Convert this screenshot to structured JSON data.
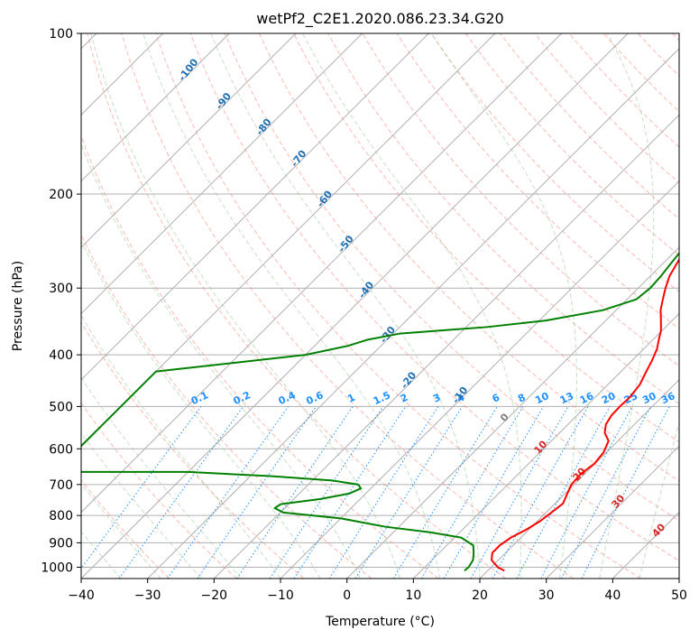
{
  "chart_data": {
    "type": "line",
    "title": "wetPf2_C2E1.2020.086.23.34.G20",
    "xlabel": "Temperature (°C)",
    "ylabel": "Pressure (hPa)",
    "xlim": [
      -40,
      50
    ],
    "ylim": [
      1050,
      100
    ],
    "yscale": "log",
    "x_ticks": [
      -40,
      -30,
      -20,
      -10,
      0,
      10,
      20,
      30,
      40,
      50
    ],
    "x_tick_labels": [
      "−40",
      "−30",
      "−20",
      "−10",
      "0",
      "10",
      "20",
      "30",
      "40",
      "50"
    ],
    "y_ticks": [
      100,
      200,
      300,
      400,
      500,
      600,
      700,
      800,
      900,
      1000
    ],
    "y_tick_labels": [
      "100",
      "200",
      "300",
      "400",
      "500",
      "600",
      "700",
      "800",
      "900",
      "1000"
    ],
    "grid": true,
    "series": [
      {
        "color": "#ff0000",
        "pressure": [
          1015,
          1000,
          970,
          940,
          910,
          880,
          850,
          820,
          790,
          760,
          730,
          700,
          670,
          640,
          610,
          580,
          560,
          540,
          520,
          500,
          480,
          455,
          430,
          410,
          390,
          375,
          360,
          345,
          330,
          315,
          300,
          285,
          270,
          255,
          240,
          225,
          210,
          195,
          180,
          170,
          160,
          150,
          140,
          130,
          120,
          110,
          100
        ],
        "temperature": [
          22.5,
          21,
          19,
          18,
          18,
          18.5,
          19.6,
          20.4,
          20.8,
          21.2,
          20.4,
          19.6,
          19.4,
          19.9,
          19.6,
          18.6,
          16.8,
          15.7,
          15.2,
          15.1,
          15.2,
          14.8,
          13.8,
          13.0,
          12.0,
          10.9,
          9.8,
          8.3,
          6.7,
          5.4,
          4.1,
          2.9,
          2.1,
          1.3,
          0.8,
          0.2,
          -0.4,
          -1.0,
          -1.1,
          -0.6,
          0.7,
          3.1,
          5.5,
          7.6,
          9.4,
          11.3,
          13.2
        ]
      },
      {
        "color": "#008000",
        "pressure": [
          1015,
          1000,
          970,
          940,
          910,
          880,
          860,
          840,
          810,
          790,
          775,
          762,
          745,
          728,
          712,
          700,
          688,
          675,
          663,
          663,
          540,
          480,
          430,
          400,
          385,
          375,
          365,
          355,
          345,
          330,
          315,
          300,
          285,
          270,
          255,
          240,
          225,
          210,
          195,
          180,
          170,
          160,
          150,
          140,
          130,
          120,
          110,
          100
        ],
        "temperature": [
          16.5,
          16.6,
          16.2,
          15.2,
          14,
          11,
          5.5,
          -2,
          -10,
          -19.5,
          -21.5,
          -21.2,
          -16,
          -12.5,
          -11.5,
          -12.5,
          -17,
          -27,
          -40,
          -60,
          -60,
          -60,
          -60,
          -40,
          -35,
          -33,
          -29,
          -17,
          -9,
          -2,
          1.4,
          1.8,
          1.6,
          1.2,
          0.8,
          -0.4,
          -2,
          -3.8,
          -5.3,
          -5.6,
          -6.1,
          -8.3,
          -9.3,
          -8.1,
          -5.4,
          -4.1,
          -3.9,
          -1.8
        ]
      }
    ],
    "dry_adiabat_labels": [
      "-100",
      "-90",
      "-80",
      "-70",
      "-60",
      "-50",
      "-40",
      "-30",
      "-20",
      "-10"
    ],
    "dry_adiabat_theta_c": [
      -100,
      -90,
      -80,
      -70,
      -60,
      -50,
      -40,
      -30,
      -20,
      -10
    ],
    "mixing_ratio_labels": [
      "0.1",
      "0.2",
      "0.4",
      "0.6",
      "1",
      "1.5",
      "2",
      "3",
      "4",
      "6",
      "8",
      "10",
      "13",
      "16",
      "20",
      "25",
      "30",
      "36"
    ],
    "mixing_ratio_values": [
      0.1,
      0.2,
      0.4,
      0.6,
      1,
      1.5,
      2,
      3,
      4,
      6,
      8,
      10,
      13,
      16,
      20,
      25,
      30,
      36
    ],
    "moist_adiabat_labels": [
      "0",
      "10",
      "20",
      "30",
      "40"
    ],
    "moist_adiabat_values": [
      0,
      10,
      20,
      30,
      40
    ],
    "colors": {
      "temperature": "#ff0000",
      "dewpoint": "#008000",
      "isotherm": "#b0b0b0",
      "dry_adiabat": "#fa8072",
      "moist_adiabat": "#98c998",
      "mixing_ratio": "#1e90ff",
      "dry_adiabat_label": "#1f6fb0",
      "moist_adiabat_label": "#d62728",
      "zero_label": "#808080",
      "special_adiabat": "#d2b48c"
    }
  }
}
